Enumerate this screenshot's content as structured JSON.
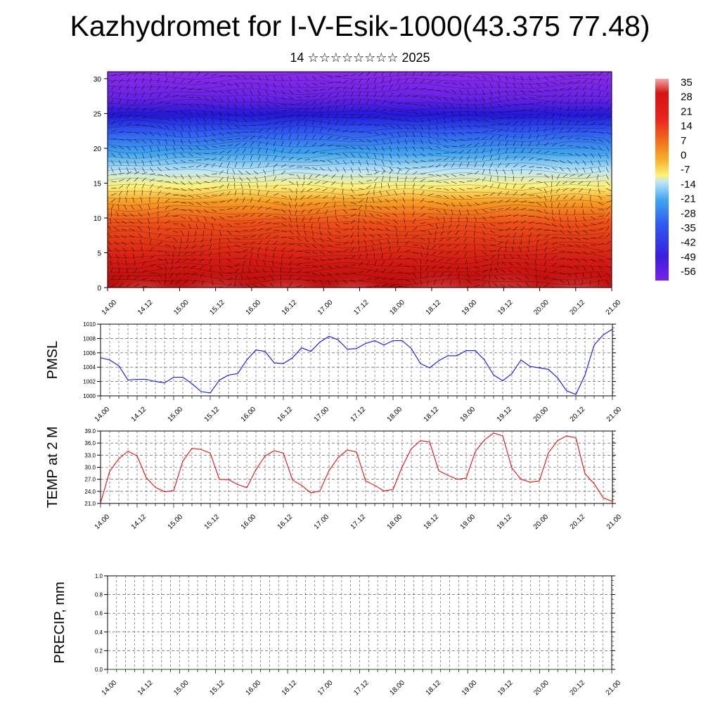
{
  "header": {
    "title": "Kazhydromet for I-V-Esik-1000(43.375 77.48)",
    "subtitle": "14 ☆☆☆☆☆☆☆☆ 2025"
  },
  "time_labels": [
    "14.00",
    "14.12",
    "15.00",
    "15.12",
    "16.00",
    "16.12",
    "17.00",
    "17.12",
    "18.00",
    "18.12",
    "19.00",
    "19.12",
    "20.00",
    "20.12",
    "21.00"
  ],
  "colors": {
    "pmsl_line": "#1010e0",
    "temp_line": "#e01010",
    "frame": "#000000"
  },
  "chart_data": [
    {
      "type": "heatmap",
      "title": "",
      "x_tick_labels": [
        "14.00",
        "14.12",
        "15.00",
        "15.12",
        "16.00",
        "16.12",
        "17.00",
        "17.12",
        "18.00",
        "18.12",
        "19.00",
        "19.12",
        "20.00",
        "20.12",
        "21.00"
      ],
      "y_tick_labels": [
        "0",
        "5",
        "10",
        "15",
        "20",
        "25",
        "30"
      ],
      "ylim": [
        0,
        31
      ],
      "colorbar_labels": [
        "35",
        "28",
        "21",
        "14",
        "7",
        "0",
        "-7",
        "-14",
        "-21",
        "-28",
        "-35",
        "-42",
        "-49",
        "-56"
      ],
      "colormap": [
        "#7a22e6",
        "#3a1ee0",
        "#2f5bf2",
        "#41a6f0",
        "#bfe6f7",
        "#fff27a",
        "#f6b02a",
        "#f06a1a",
        "#e8261d",
        "#d31414",
        "#f3a9a9"
      ],
      "overlay": "wind vectors and contour lines",
      "legend": "right"
    },
    {
      "type": "line",
      "ylabel": "PMSL",
      "ylim": [
        1000,
        1010
      ],
      "y_tick_labels": [
        "1000",
        "1002",
        "1004",
        "1006",
        "1008",
        "1010"
      ],
      "x_tick_labels": [
        "14.00",
        "14.12",
        "15.00",
        "15.12",
        "16.00",
        "16.12",
        "17.00",
        "17.12",
        "18.00",
        "18.12",
        "19.00",
        "19.12",
        "20.00",
        "20.12",
        "21.00"
      ],
      "grid": true,
      "series": [
        {
          "values": [
            1005.3,
            1005.0,
            1004.2,
            1002.2,
            1002.3,
            1002.3,
            1002.0,
            1001.8,
            1002.6,
            1002.6,
            1001.7,
            1000.6,
            1000.4,
            1002.2,
            1002.9,
            1003.1,
            1005.0,
            1006.4,
            1006.2,
            1004.6,
            1004.5,
            1005.3,
            1006.7,
            1006.2,
            1007.5,
            1008.3,
            1007.8,
            1006.5,
            1006.6,
            1007.3,
            1007.7,
            1007.1,
            1007.7,
            1007.7,
            1006.6,
            1004.5,
            1003.9,
            1004.9,
            1005.6,
            1005.6,
            1006.3,
            1006.3,
            1005.0,
            1002.9,
            1002.1,
            1003.1,
            1005.0,
            1004.1,
            1003.9,
            1003.7,
            1002.5,
            1000.7,
            1000.2,
            1002.9,
            1007.1,
            1008.5,
            1009.3
          ]
        }
      ]
    },
    {
      "type": "line",
      "ylabel": "TEMP at 2 M",
      "ylim": [
        21,
        39
      ],
      "y_tick_labels": [
        "21.0",
        "24.0",
        "27.0",
        "30.0",
        "33.0",
        "36.0",
        "39.0"
      ],
      "x_tick_labels": [
        "14.00",
        "14.12",
        "15.00",
        "15.12",
        "16.00",
        "16.12",
        "17.00",
        "17.12",
        "18.00",
        "18.12",
        "19.00",
        "19.12",
        "20.00",
        "20.12",
        "21.00"
      ],
      "grid": true,
      "series": [
        {
          "values": [
            21.1,
            29.0,
            32.1,
            34.0,
            32.8,
            27.4,
            25.0,
            23.9,
            24.2,
            31.5,
            34.7,
            34.4,
            33.5,
            27.0,
            26.9,
            25.7,
            24.9,
            29.4,
            32.8,
            34.1,
            33.5,
            26.8,
            25.5,
            23.6,
            24.1,
            29.2,
            32.4,
            34.3,
            33.8,
            26.6,
            25.5,
            24.1,
            24.5,
            30.1,
            34.6,
            36.6,
            36.3,
            29.1,
            28.0,
            27.0,
            27.3,
            33.9,
            36.8,
            38.5,
            37.8,
            29.8,
            27.0,
            26.3,
            26.6,
            33.6,
            36.6,
            37.8,
            37.3,
            28.4,
            25.9,
            22.4,
            21.5
          ]
        }
      ]
    },
    {
      "type": "line",
      "ylabel": "PRECIP, mm",
      "ylim": [
        0,
        1
      ],
      "y_tick_labels": [
        "0.0",
        "0.2",
        "0.4",
        "0.6",
        "0.8",
        "1.0"
      ],
      "x_tick_labels": [
        "14.00",
        "14.12",
        "15.00",
        "15.12",
        "16.00",
        "16.12",
        "17.00",
        "17.12",
        "18.00",
        "18.12",
        "19.00",
        "19.12",
        "20.00",
        "20.12",
        "21.00"
      ],
      "grid": true,
      "series": [
        {
          "values": [
            0,
            0,
            0,
            0,
            0,
            0,
            0,
            0,
            0,
            0,
            0,
            0,
            0,
            0,
            0,
            0,
            0,
            0,
            0,
            0,
            0,
            0,
            0,
            0,
            0,
            0,
            0,
            0,
            0,
            0,
            0,
            0,
            0,
            0,
            0,
            0,
            0,
            0,
            0,
            0,
            0,
            0,
            0,
            0,
            0,
            0,
            0,
            0,
            0,
            0,
            0,
            0,
            0,
            0,
            0,
            0,
            0
          ]
        }
      ]
    }
  ]
}
